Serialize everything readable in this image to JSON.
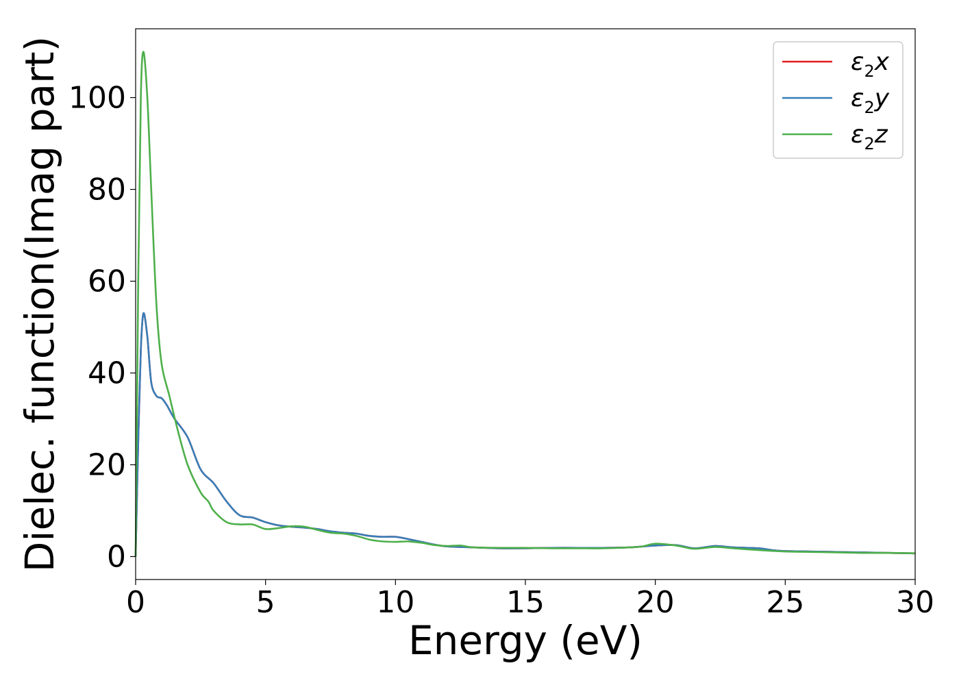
{
  "chart_data": {
    "type": "line",
    "xlabel": "Energy (eV)",
    "ylabel": "Dielec. function(Imag part)",
    "xlim": [
      0,
      30
    ],
    "ylim": [
      -5,
      115
    ],
    "xticks": [
      0,
      5,
      10,
      15,
      20,
      25,
      30
    ],
    "yticks": [
      0,
      20,
      40,
      60,
      80,
      100
    ],
    "grid": false,
    "legend_position": "top-right",
    "series": [
      {
        "name": "ε2x",
        "legend": {
          "base": "ε",
          "sub": "2",
          "comp": "x"
        },
        "color": "#e41a1c",
        "x": [
          0,
          0.1,
          0.2,
          0.3,
          0.45,
          0.6,
          0.8,
          1.0,
          1.2,
          1.5,
          2.0,
          2.5,
          3.0,
          3.5,
          4.0,
          4.5,
          5.0,
          5.5,
          6.0,
          6.5,
          7.0,
          7.5,
          8.0,
          8.5,
          9.0,
          9.5,
          10.0,
          10.5,
          11.0,
          11.5,
          12.0,
          13.0,
          14.0,
          15.0,
          16.0,
          17.0,
          18.0,
          19.0,
          20.0,
          20.8,
          21.5,
          22.3,
          23.0,
          24.0,
          24.5,
          25.0,
          26.0,
          27.0,
          28.0,
          29.0,
          30.0
        ],
        "values": [
          0,
          25,
          45,
          53,
          48,
          38,
          35,
          34.5,
          33,
          30,
          26,
          19,
          16,
          12,
          9,
          8.5,
          7.5,
          6.8,
          6.5,
          6.3,
          6,
          5.5,
          5.2,
          5,
          4.5,
          4.3,
          4.3,
          3.8,
          3.2,
          2.6,
          2.2,
          2,
          1.8,
          1.8,
          1.9,
          1.9,
          1.9,
          2,
          2.4,
          2.5,
          1.8,
          2.3,
          2,
          1.8,
          1.4,
          1.2,
          1.1,
          1.0,
          0.9,
          0.8,
          0.7
        ]
      },
      {
        "name": "ε2y",
        "legend": {
          "base": "ε",
          "sub": "2",
          "comp": "y"
        },
        "color": "#377eb8",
        "x": [
          0,
          0.1,
          0.2,
          0.3,
          0.45,
          0.6,
          0.8,
          1.0,
          1.2,
          1.5,
          2.0,
          2.5,
          3.0,
          3.5,
          4.0,
          4.5,
          5.0,
          5.5,
          6.0,
          6.5,
          7.0,
          7.5,
          8.0,
          8.5,
          9.0,
          9.5,
          10.0,
          10.5,
          11.0,
          11.5,
          12.0,
          13.0,
          14.0,
          15.0,
          16.0,
          17.0,
          18.0,
          19.0,
          20.0,
          20.8,
          21.5,
          22.3,
          23.0,
          24.0,
          24.5,
          25.0,
          26.0,
          27.0,
          28.0,
          29.0,
          30.0
        ],
        "values": [
          0,
          25,
          45,
          53,
          48,
          38,
          35,
          34.5,
          33,
          30,
          26,
          19,
          16,
          12,
          9,
          8.5,
          7.5,
          6.8,
          6.5,
          6.3,
          6,
          5.5,
          5.2,
          5,
          4.5,
          4.3,
          4.3,
          3.8,
          3.2,
          2.6,
          2.2,
          2,
          1.8,
          1.8,
          1.9,
          1.9,
          1.9,
          2,
          2.4,
          2.5,
          1.8,
          2.3,
          2,
          1.8,
          1.4,
          1.2,
          1.1,
          1.0,
          0.9,
          0.8,
          0.7
        ]
      },
      {
        "name": "ε2z",
        "legend": {
          "base": "ε",
          "sub": "2",
          "comp": "z"
        },
        "color": "#4daf4a",
        "x": [
          0,
          0.1,
          0.2,
          0.3,
          0.45,
          0.6,
          0.8,
          1.0,
          1.3,
          1.6,
          2.0,
          2.5,
          2.8,
          3.0,
          3.5,
          4.0,
          4.5,
          5.0,
          5.5,
          6.0,
          6.5,
          7.0,
          7.5,
          8.0,
          8.5,
          9.0,
          9.5,
          10.0,
          10.5,
          11.0,
          11.5,
          12.0,
          12.5,
          13.0,
          14.0,
          15.0,
          16.0,
          17.0,
          18.0,
          19.0,
          19.5,
          20.0,
          20.8,
          21.5,
          22.3,
          23.0,
          24.0,
          25.0,
          26.0,
          27.0,
          28.0,
          29.0,
          30.0
        ],
        "values": [
          0,
          60,
          100,
          110,
          100,
          80,
          55,
          42,
          35,
          28,
          20,
          14,
          12,
          10,
          7.5,
          7,
          7,
          6,
          6.2,
          6.6,
          6.5,
          5.8,
          5.2,
          5,
          4.5,
          3.7,
          3.3,
          3.2,
          3.3,
          3,
          2.5,
          2.3,
          2.4,
          2,
          1.9,
          1.9,
          1.8,
          1.8,
          1.8,
          2,
          2.2,
          2.8,
          2.4,
          1.7,
          2.1,
          1.8,
          1.4,
          1.1,
          1.0,
          0.9,
          0.8,
          0.8,
          0.7
        ]
      }
    ]
  }
}
